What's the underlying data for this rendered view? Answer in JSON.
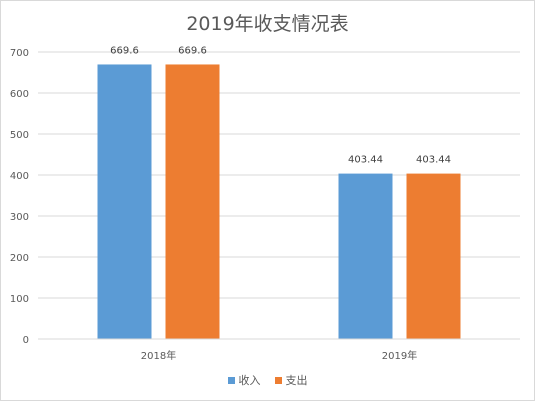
{
  "chart_data": {
    "type": "bar",
    "title": "2019年收支情况表",
    "categories": [
      "2018年",
      "2019年"
    ],
    "series": [
      {
        "name": "收入",
        "values": [
          669.6,
          403.44
        ],
        "labels": [
          "669.6",
          "403.44"
        ],
        "color": "#5b9bd5"
      },
      {
        "name": "支出",
        "values": [
          669.6,
          403.44
        ],
        "labels": [
          "669.6",
          "403.44"
        ],
        "color": "#ed7d31"
      }
    ],
    "ylim": [
      0,
      700
    ],
    "yticks": [
      "0",
      "100",
      "200",
      "300",
      "400",
      "500",
      "600",
      "700"
    ],
    "grid": true,
    "legend_position": "bottom"
  }
}
